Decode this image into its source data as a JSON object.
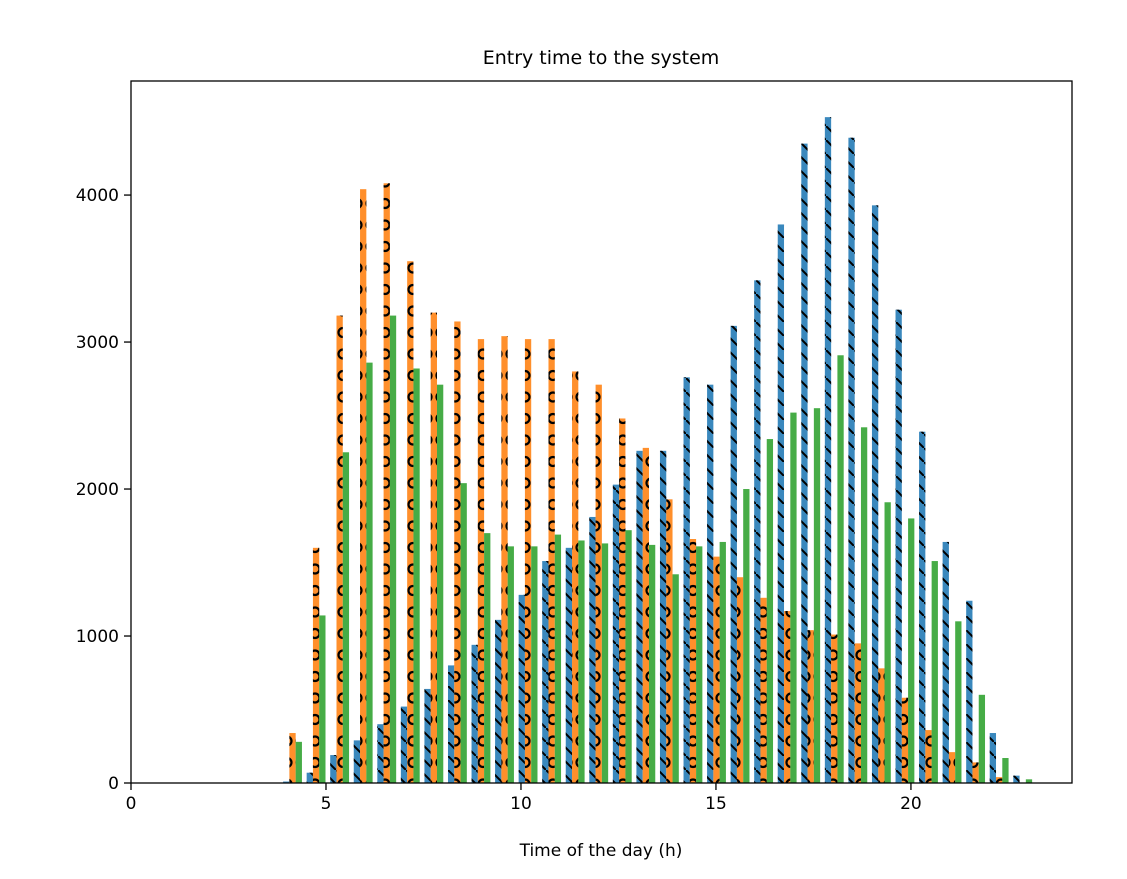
{
  "chart_data": {
    "type": "bar",
    "subtype": "grouped-histogram",
    "title": "Entry time to the system",
    "xlabel": "Time of the day (h)",
    "ylabel": "",
    "xlim": [
      0,
      24.13
    ],
    "ylim": [
      0,
      4776
    ],
    "xticks": [
      0,
      5,
      10,
      15,
      20
    ],
    "yticks": [
      0,
      1000,
      2000,
      3000,
      4000
    ],
    "grid": false,
    "bin_start": 3.84,
    "bin_width": 0.604,
    "series": [
      {
        "color": "#1f77b4",
        "hatch": "diagonal-backslash",
        "values": [
          10,
          70,
          190,
          290,
          400,
          520,
          640,
          800,
          940,
          1110,
          1280,
          1510,
          1600,
          1810,
          2030,
          2260,
          2260,
          2760,
          2710,
          3110,
          3420,
          3800,
          4350,
          4530,
          4390,
          3930,
          3220,
          2390,
          1640,
          1240,
          340,
          50
        ]
      },
      {
        "color": "#ff7f0e",
        "hatch": "circles",
        "values": [
          340,
          1600,
          3180,
          4040,
          4080,
          3550,
          3200,
          3140,
          3020,
          3040,
          3020,
          3020,
          2800,
          2710,
          2480,
          2280,
          1930,
          1660,
          1540,
          1400,
          1260,
          1170,
          1040,
          1010,
          950,
          780,
          580,
          360,
          210,
          140,
          40,
          0
        ]
      },
      {
        "color": "#2ca02c",
        "hatch": "none",
        "values": [
          280,
          1140,
          2250,
          2860,
          3180,
          2820,
          2710,
          2040,
          1700,
          1610,
          1610,
          1690,
          1650,
          1630,
          1720,
          1620,
          1420,
          1610,
          1640,
          2000,
          2340,
          2520,
          2550,
          2910,
          2420,
          1910,
          1800,
          1510,
          1100,
          600,
          170,
          25
        ]
      }
    ]
  }
}
